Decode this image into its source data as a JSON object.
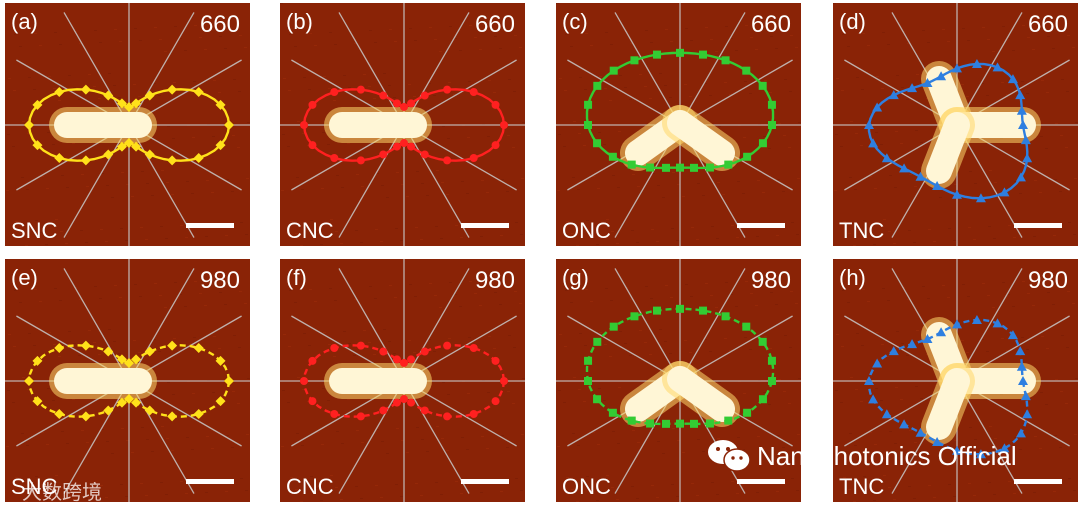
{
  "panels": [
    {
      "label": "(a)",
      "wavelength": "660",
      "name": "SNC",
      "shape": "single",
      "style": "solid",
      "color": "#ffe11a",
      "marker": "diamond"
    },
    {
      "label": "(b)",
      "wavelength": "660",
      "name": "CNC",
      "shape": "single",
      "style": "solid",
      "color": "#ff2020",
      "marker": "circle"
    },
    {
      "label": "(c)",
      "wavelength": "660",
      "name": "ONC",
      "shape": "vshape",
      "style": "solid",
      "color": "#33cc33",
      "marker": "square"
    },
    {
      "label": "(d)",
      "wavelength": "660",
      "name": "TNC",
      "shape": "tripod",
      "style": "solid",
      "color": "#2e7fe0",
      "marker": "triangle"
    },
    {
      "label": "(e)",
      "wavelength": "980",
      "name": "SNC",
      "shape": "single",
      "style": "dashed",
      "color": "#ffe11a",
      "marker": "diamond"
    },
    {
      "label": "(f)",
      "wavelength": "980",
      "name": "CNC",
      "shape": "single",
      "style": "dashed",
      "color": "#ff2020",
      "marker": "circle"
    },
    {
      "label": "(g)",
      "wavelength": "980",
      "name": "ONC",
      "shape": "vshape",
      "style": "dashed",
      "color": "#33cc33",
      "marker": "square"
    },
    {
      "label": "(h)",
      "wavelength": "980",
      "name": "TNC",
      "shape": "tripod",
      "style": "dashed",
      "color": "#2e7fe0",
      "marker": "triangle"
    }
  ],
  "watermark": {
    "text": "Nanophotonics Official",
    "icon": "wechat-icon"
  },
  "corner_watermark": {
    "text": "大数跨境"
  }
}
